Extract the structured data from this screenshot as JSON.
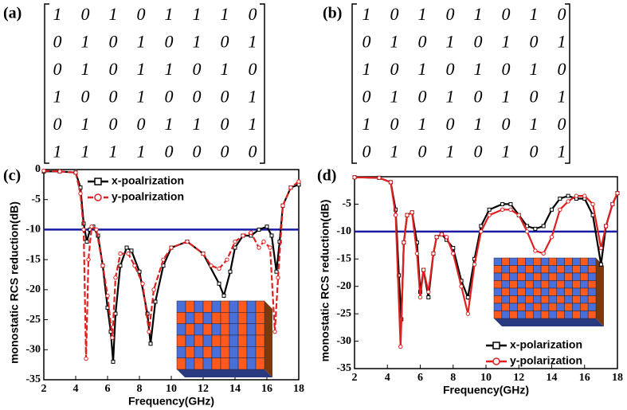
{
  "panel_labels": [
    "(a)",
    "(b)",
    "(c)",
    "(d)"
  ],
  "matrices": {
    "a": {
      "rows": [
        [
          1,
          0,
          1,
          0,
          1,
          1,
          1,
          0
        ],
        [
          0,
          1,
          0,
          1,
          0,
          1,
          0,
          1
        ],
        [
          0,
          1,
          0,
          1,
          1,
          0,
          1,
          0
        ],
        [
          1,
          0,
          0,
          1,
          0,
          0,
          0,
          1
        ],
        [
          0,
          1,
          0,
          0,
          1,
          1,
          0,
          1
        ],
        [
          1,
          1,
          1,
          1,
          0,
          0,
          0,
          0
        ]
      ]
    },
    "b": {
      "rows": [
        [
          1,
          0,
          1,
          0,
          1,
          0,
          1,
          0
        ],
        [
          0,
          1,
          0,
          1,
          0,
          1,
          0,
          1
        ],
        [
          1,
          0,
          1,
          0,
          1,
          0,
          1,
          0
        ],
        [
          0,
          1,
          0,
          1,
          0,
          1,
          0,
          1
        ],
        [
          1,
          0,
          1,
          0,
          1,
          0,
          1,
          0
        ],
        [
          0,
          1,
          0,
          1,
          0,
          1,
          0,
          1
        ]
      ]
    }
  },
  "chart_data": [
    {
      "type": "line",
      "x_label": "Frequency(GHz)",
      "y_label": "monostatic RCS reduction(dB)",
      "xlim": [
        2,
        18
      ],
      "xticks": [
        2,
        4,
        6,
        8,
        10,
        12,
        14,
        16,
        18
      ],
      "ylim": [
        -35,
        0
      ],
      "yticks": [
        0,
        -5,
        -10,
        -15,
        -20,
        -25,
        -30,
        -35
      ],
      "hline": {
        "value": -10,
        "color": "#1a1aa6"
      },
      "legend": "upper center",
      "series": [
        {
          "name": "x-poalrization",
          "color": "#000000",
          "marker": "square",
          "x": [
            2,
            3,
            4,
            4.3,
            4.5,
            4.7,
            4.9,
            5.1,
            5.4,
            5.7,
            6,
            6.2,
            6.35,
            6.5,
            6.8,
            7.2,
            7.5,
            8,
            8.5,
            8.7,
            9,
            9.5,
            10,
            11,
            12,
            13,
            13.3,
            13.7,
            14,
            14.5,
            15,
            15.5,
            16,
            16.3,
            16.6,
            16.8,
            17,
            17.5,
            18
          ],
          "values": [
            -0.3,
            -0.3,
            -0.5,
            -3,
            -9,
            -12,
            -10,
            -9.5,
            -11,
            -16,
            -23,
            -27,
            -32,
            -24,
            -16,
            -13,
            -13.5,
            -17,
            -24,
            -29,
            -22,
            -16,
            -13,
            -12,
            -14,
            -19,
            -21,
            -17,
            -13,
            -11,
            -11,
            -10,
            -9.5,
            -11,
            -17,
            -12,
            -6,
            -3,
            -2.5
          ]
        },
        {
          "name": "y-poalrization",
          "color": "#e02020",
          "marker": "circle",
          "x": [
            2,
            3,
            4,
            4.3,
            4.5,
            4.65,
            4.8,
            5,
            5.3,
            5.7,
            6,
            6.3,
            6.5,
            6.8,
            7.3,
            7.7,
            8.2,
            8.6,
            8.9,
            9.5,
            10,
            11,
            12,
            12.5,
            13,
            13.5,
            14,
            14.5,
            15,
            15.5,
            15.8,
            16.2,
            16.5,
            16.7,
            17,
            17.5,
            18
          ],
          "values": [
            -0.2,
            -0.3,
            -0.5,
            -4,
            -10,
            -31.5,
            -15,
            -9.5,
            -10,
            -16,
            -21,
            -28,
            -18,
            -14,
            -14,
            -16,
            -19,
            -27,
            -20,
            -15,
            -13,
            -12,
            -14,
            -16,
            -16.5,
            -15,
            -12,
            -11,
            -10.5,
            -13,
            -12,
            -13,
            -27,
            -18,
            -6,
            -3,
            -2
          ]
        }
      ]
    },
    {
      "type": "line",
      "x_label": "Frequency(GHz)",
      "y_label": "monostatic RCS reduction(dB)",
      "xlim": [
        2,
        18
      ],
      "xticks": [
        2,
        4,
        6,
        8,
        10,
        12,
        14,
        16,
        18
      ],
      "ylim": [
        -35,
        0
      ],
      "yticks": [
        -5,
        -10,
        -15,
        -20,
        -25,
        -30,
        -35
      ],
      "hline": {
        "value": -10,
        "color": "#1a1aa6"
      },
      "legend": "lower right",
      "series": [
        {
          "name": "x-polarization",
          "color": "#000000",
          "marker": "square",
          "x": [
            2,
            3.5,
            4.2,
            4.5,
            4.7,
            4.85,
            5,
            5.2,
            5.5,
            5.8,
            6,
            6.2,
            6.5,
            6.8,
            7,
            7.3,
            7.6,
            8,
            8.5,
            8.9,
            9.3,
            9.7,
            10.2,
            11,
            11.5,
            12,
            12.5,
            13,
            13.5,
            14,
            14.5,
            15,
            15.5,
            16,
            16.5,
            17,
            17.3,
            17.7,
            18
          ],
          "values": [
            -0.1,
            -0.2,
            -1,
            -6,
            -18,
            -26,
            -12,
            -7,
            -6.5,
            -12,
            -21,
            -17,
            -22,
            -14,
            -11,
            -10.5,
            -11.5,
            -13,
            -19,
            -22,
            -15,
            -9,
            -6,
            -5,
            -5,
            -7,
            -9,
            -9.5,
            -9,
            -6,
            -4,
            -3.5,
            -4,
            -4,
            -7,
            -16,
            -9,
            -5,
            -3
          ]
        },
        {
          "name": "y-polarization",
          "color": "#e02020",
          "marker": "circle",
          "x": [
            2,
            3.5,
            4.2,
            4.5,
            4.8,
            5,
            5.2,
            5.5,
            5.8,
            6,
            6.2,
            6.5,
            6.8,
            7,
            7.3,
            7.6,
            8,
            8.5,
            8.9,
            9.3,
            9.7,
            10.2,
            11,
            11.5,
            12,
            12.5,
            13,
            13.5,
            14,
            14.5,
            15,
            15.5,
            16,
            16.5,
            17,
            17.3,
            17.7,
            18
          ],
          "values": [
            -0.1,
            -0.2,
            -1,
            -7,
            -31,
            -12,
            -7,
            -6.5,
            -14,
            -22,
            -17,
            -21,
            -14,
            -11,
            -10.5,
            -11,
            -14,
            -20,
            -25,
            -16,
            -10,
            -7,
            -6,
            -6,
            -7,
            -10,
            -13.5,
            -14,
            -11,
            -6,
            -4.5,
            -3.5,
            -3.5,
            -5,
            -13,
            -9,
            -5,
            -3
          ]
        }
      ]
    }
  ]
}
